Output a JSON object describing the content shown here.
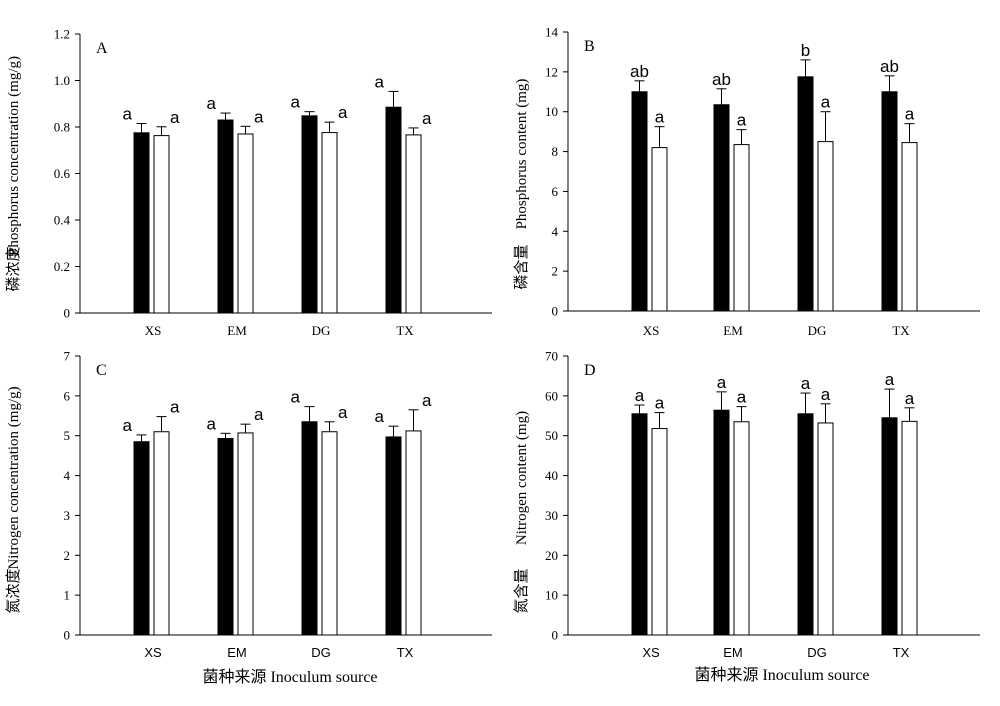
{
  "x_axis_title": "菌种来源  Inoculum source",
  "legend_colors": {
    "filled": "#000000",
    "open": "#ffffff"
  },
  "chart_data": [
    {
      "panel": "A",
      "type": "bar",
      "ylabel_cn": "磷浓度",
      "ylabel_en": "Phosphorus concentration (mg/g)",
      "ylim": [
        0,
        1.2
      ],
      "yticks": [
        "0",
        "0.2",
        "0.4",
        "0.6",
        "0.8",
        "1.0",
        "1.2"
      ],
      "tick_step": 0.2,
      "categories": [
        "XS",
        "EM",
        "DG",
        "TX"
      ],
      "cat_font": "serif",
      "series": [
        {
          "fill": "#000000",
          "values": [
            0.775,
            0.83,
            0.848,
            0.885
          ],
          "errors": [
            0.04,
            0.03,
            0.018,
            0.068
          ],
          "letters": [
            "a",
            "a",
            "a",
            "a"
          ]
        },
        {
          "fill": "#ffffff",
          "values": [
            0.763,
            0.77,
            0.776,
            0.766
          ],
          "errors": [
            0.038,
            0.033,
            0.045,
            0.03
          ],
          "letters": [
            "a",
            "a",
            "a",
            "a"
          ]
        }
      ]
    },
    {
      "panel": "B",
      "type": "bar",
      "ylabel_cn": "磷含量",
      "ylabel_en": "Phosphorus content (mg)",
      "ylim": [
        0,
        14
      ],
      "yticks": [
        "0",
        "2",
        "4",
        "6",
        "8",
        "10",
        "12",
        "14"
      ],
      "tick_step": 2,
      "categories": [
        "XS",
        "EM",
        "DG",
        "TX"
      ],
      "cat_font": "serif",
      "series": [
        {
          "fill": "#000000",
          "values": [
            11.0,
            10.35,
            11.75,
            11.0
          ],
          "errors": [
            0.55,
            0.8,
            0.85,
            0.8
          ],
          "letters": [
            "ab",
            "ab",
            "b",
            "ab"
          ]
        },
        {
          "fill": "#ffffff",
          "values": [
            8.2,
            8.35,
            8.5,
            8.45
          ],
          "errors": [
            1.05,
            0.75,
            1.5,
            0.95
          ],
          "letters": [
            "a",
            "a",
            "a",
            "a"
          ]
        }
      ]
    },
    {
      "panel": "C",
      "type": "bar",
      "ylabel_cn": "氮浓度",
      "ylabel_en": "Nitrogen concentration (mg/g)",
      "ylim": [
        0,
        7
      ],
      "yticks": [
        "0",
        "1",
        "2",
        "3",
        "4",
        "5",
        "6",
        "7"
      ],
      "tick_step": 1,
      "categories": [
        "XS",
        "EM",
        "DG",
        "TX"
      ],
      "cat_font": "sans",
      "series": [
        {
          "fill": "#000000",
          "values": [
            4.85,
            4.93,
            5.35,
            4.97
          ],
          "errors": [
            0.17,
            0.13,
            0.38,
            0.27
          ],
          "letters": [
            "a",
            "a",
            "a",
            "a"
          ]
        },
        {
          "fill": "#ffffff",
          "values": [
            5.1,
            5.07,
            5.1,
            5.12
          ],
          "errors": [
            0.38,
            0.22,
            0.25,
            0.53
          ],
          "letters": [
            "a",
            "a",
            "a",
            "a"
          ]
        }
      ]
    },
    {
      "panel": "D",
      "type": "bar",
      "ylabel_cn": "氮含量",
      "ylabel_en": "Nitrogen content (mg)",
      "ylim": [
        0,
        70
      ],
      "yticks": [
        "0",
        "10",
        "20",
        "30",
        "40",
        "50",
        "60",
        "70"
      ],
      "tick_step": 10,
      "categories": [
        "XS",
        "EM",
        "DG",
        "TX"
      ],
      "cat_font": "sans",
      "series": [
        {
          "fill": "#000000",
          "values": [
            55.5,
            56.4,
            55.5,
            54.5
          ],
          "errors": [
            2.2,
            4.6,
            5.2,
            7.2
          ],
          "letters": [
            "a",
            "a",
            "a",
            "a"
          ]
        },
        {
          "fill": "#ffffff",
          "values": [
            51.8,
            53.5,
            53.2,
            53.6
          ],
          "errors": [
            4.0,
            3.8,
            4.8,
            3.4
          ],
          "letters": [
            "a",
            "a",
            "a",
            "a"
          ]
        }
      ]
    }
  ]
}
